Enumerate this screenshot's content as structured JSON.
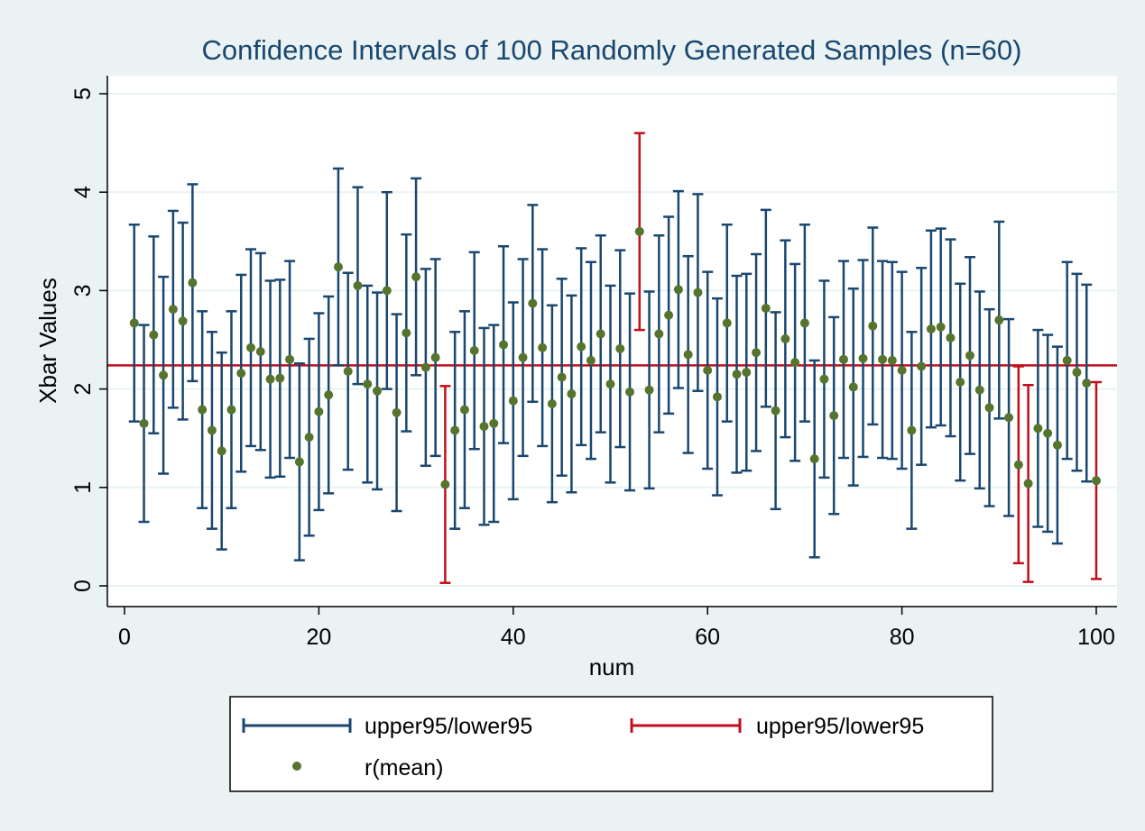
{
  "chart_data": {
    "type": "scatter",
    "title": "Confidence Intervals of 100 Randomly Generated Samples (n=60)",
    "xlabel": "num",
    "ylabel": "Xbar Values",
    "xlim": [
      0,
      100
    ],
    "ylim": [
      0,
      5
    ],
    "xticks": [
      0,
      20,
      40,
      60,
      80,
      100
    ],
    "yticks": [
      0,
      1,
      2,
      3,
      4,
      5
    ],
    "grid": true,
    "reference_line": {
      "y": 2.24,
      "color": "#c10f1d"
    },
    "colors": {
      "inside": "#1a476f",
      "outside": "#c10f1d",
      "mean": "#55752f",
      "plot_bg": "#ffffff",
      "page_bg": "#eaf2f3"
    },
    "legend": {
      "placement": "bottom",
      "entries": [
        {
          "label": "upper95/lower95",
          "kind": "interval-inside"
        },
        {
          "label": "upper95/lower95",
          "kind": "interval-outside"
        },
        {
          "label": "r(mean)",
          "kind": "marker"
        }
      ]
    },
    "half_width": 1.0,
    "x": [
      1,
      2,
      3,
      4,
      5,
      6,
      7,
      8,
      9,
      10,
      11,
      12,
      13,
      14,
      15,
      16,
      17,
      18,
      19,
      20,
      21,
      22,
      23,
      24,
      25,
      26,
      27,
      28,
      29,
      30,
      31,
      32,
      33,
      34,
      35,
      36,
      37,
      38,
      39,
      40,
      41,
      42,
      43,
      44,
      45,
      46,
      47,
      48,
      49,
      50,
      51,
      52,
      53,
      54,
      55,
      56,
      57,
      58,
      59,
      60,
      61,
      62,
      63,
      64,
      65,
      66,
      67,
      68,
      69,
      70,
      71,
      72,
      73,
      74,
      75,
      76,
      77,
      78,
      79,
      80,
      81,
      82,
      83,
      84,
      85,
      86,
      87,
      88,
      89,
      90,
      91,
      92,
      93,
      94,
      95,
      96,
      97,
      98,
      99,
      100
    ],
    "mean": [
      2.67,
      1.65,
      2.55,
      2.14,
      2.81,
      2.69,
      3.08,
      1.79,
      1.58,
      1.37,
      1.79,
      2.16,
      2.42,
      2.38,
      2.1,
      2.11,
      2.3,
      1.26,
      1.51,
      1.77,
      1.94,
      3.24,
      2.18,
      3.05,
      2.05,
      1.98,
      3.0,
      1.76,
      2.57,
      3.14,
      2.22,
      2.32,
      1.03,
      1.58,
      1.79,
      2.39,
      1.62,
      1.65,
      2.45,
      1.88,
      2.32,
      2.87,
      2.42,
      1.85,
      2.12,
      1.95,
      2.43,
      2.29,
      2.56,
      2.05,
      2.41,
      1.97,
      3.6,
      1.99,
      2.56,
      2.75,
      3.01,
      2.35,
      2.98,
      2.19,
      1.92,
      2.67,
      2.15,
      2.17,
      2.37,
      2.82,
      1.78,
      2.51,
      2.27,
      2.67,
      1.29,
      2.1,
      1.73,
      2.3,
      2.02,
      2.31,
      2.64,
      2.3,
      2.29,
      2.19,
      1.58,
      2.23,
      2.61,
      2.63,
      2.52,
      2.07,
      2.34,
      1.99,
      1.81,
      2.7,
      1.71,
      1.23,
      1.04,
      1.6,
      1.55,
      1.43,
      2.29,
      2.17,
      2.06,
      1.07
    ],
    "contains_true_mean": [
      true,
      true,
      true,
      true,
      true,
      true,
      true,
      true,
      true,
      true,
      true,
      true,
      true,
      true,
      true,
      true,
      true,
      true,
      true,
      true,
      true,
      true,
      true,
      true,
      true,
      true,
      true,
      true,
      true,
      true,
      true,
      true,
      false,
      true,
      true,
      true,
      true,
      true,
      true,
      true,
      true,
      true,
      true,
      true,
      true,
      true,
      true,
      true,
      true,
      true,
      true,
      true,
      false,
      true,
      true,
      true,
      true,
      true,
      true,
      true,
      true,
      true,
      true,
      true,
      true,
      true,
      true,
      true,
      true,
      true,
      true,
      true,
      true,
      true,
      true,
      true,
      true,
      true,
      true,
      true,
      true,
      true,
      true,
      true,
      true,
      true,
      true,
      true,
      true,
      true,
      true,
      false,
      false,
      true,
      true,
      true,
      true,
      true,
      true,
      false
    ]
  }
}
